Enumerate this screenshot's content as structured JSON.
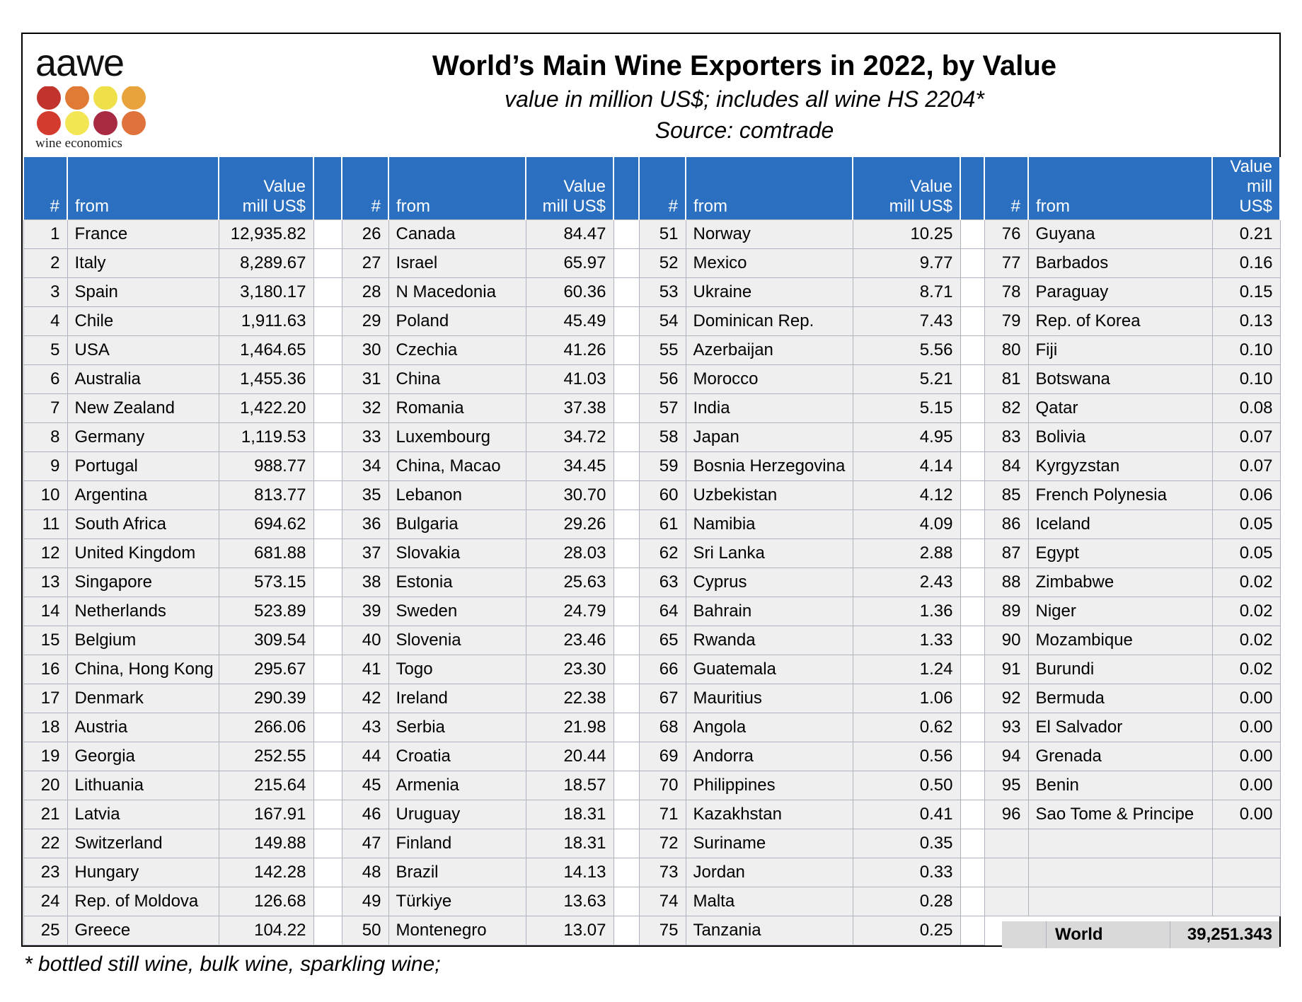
{
  "logo": {
    "wordmark": "aawe",
    "tagline": "wine economics",
    "dot_colors": [
      "#c0342d",
      "#e07a34",
      "#efe04a",
      "#e9a33d",
      "#d33b2f",
      "#f2e655",
      "#a82b43",
      "#e0733c"
    ]
  },
  "title": "World’s Main Wine Exporters in 2022, by Value",
  "subtitle": "value in million US$; includes all wine HS 2204*",
  "source": "Source: comtrade",
  "columns": {
    "rank": "#",
    "from": "from",
    "value_line1": "Value",
    "value_line2": "mill US$"
  },
  "rows": [
    [
      [
        "1",
        "France",
        "12,935.82"
      ],
      [
        "26",
        "Canada",
        "84.47"
      ],
      [
        "51",
        "Norway",
        "10.25"
      ],
      [
        "76",
        "Guyana",
        "0.21"
      ]
    ],
    [
      [
        "2",
        "Italy",
        "8,289.67"
      ],
      [
        "27",
        "Israel",
        "65.97"
      ],
      [
        "52",
        "Mexico",
        "9.77"
      ],
      [
        "77",
        "Barbados",
        "0.16"
      ]
    ],
    [
      [
        "3",
        "Spain",
        "3,180.17"
      ],
      [
        "28",
        "N Macedonia",
        "60.36"
      ],
      [
        "53",
        "Ukraine",
        "8.71"
      ],
      [
        "78",
        "Paraguay",
        "0.15"
      ]
    ],
    [
      [
        "4",
        "Chile",
        "1,911.63"
      ],
      [
        "29",
        "Poland",
        "45.49"
      ],
      [
        "54",
        "Dominican Rep.",
        "7.43"
      ],
      [
        "79",
        "Rep. of Korea",
        "0.13"
      ]
    ],
    [
      [
        "5",
        "USA",
        "1,464.65"
      ],
      [
        "30",
        "Czechia",
        "41.26"
      ],
      [
        "55",
        "Azerbaijan",
        "5.56"
      ],
      [
        "80",
        "Fiji",
        "0.10"
      ]
    ],
    [
      [
        "6",
        "Australia",
        "1,455.36"
      ],
      [
        "31",
        "China",
        "41.03"
      ],
      [
        "56",
        "Morocco",
        "5.21"
      ],
      [
        "81",
        "Botswana",
        "0.10"
      ]
    ],
    [
      [
        "7",
        "New Zealand",
        "1,422.20"
      ],
      [
        "32",
        "Romania",
        "37.38"
      ],
      [
        "57",
        "India",
        "5.15"
      ],
      [
        "82",
        "Qatar",
        "0.08"
      ]
    ],
    [
      [
        "8",
        "Germany",
        "1,119.53"
      ],
      [
        "33",
        "Luxembourg",
        "34.72"
      ],
      [
        "58",
        "Japan",
        "4.95"
      ],
      [
        "83",
        "Bolivia",
        "0.07"
      ]
    ],
    [
      [
        "9",
        "Portugal",
        "988.77"
      ],
      [
        "34",
        "China, Macao",
        "34.45"
      ],
      [
        "59",
        "Bosnia Herzegovina",
        "4.14"
      ],
      [
        "84",
        "Kyrgyzstan",
        "0.07"
      ]
    ],
    [
      [
        "10",
        "Argentina",
        "813.77"
      ],
      [
        "35",
        "Lebanon",
        "30.70"
      ],
      [
        "60",
        "Uzbekistan",
        "4.12"
      ],
      [
        "85",
        "French Polynesia",
        "0.06"
      ]
    ],
    [
      [
        "11",
        "South Africa",
        "694.62"
      ],
      [
        "36",
        "Bulgaria",
        "29.26"
      ],
      [
        "61",
        "Namibia",
        "4.09"
      ],
      [
        "86",
        "Iceland",
        "0.05"
      ]
    ],
    [
      [
        "12",
        "United Kingdom",
        "681.88"
      ],
      [
        "37",
        "Slovakia",
        "28.03"
      ],
      [
        "62",
        "Sri Lanka",
        "2.88"
      ],
      [
        "87",
        "Egypt",
        "0.05"
      ]
    ],
    [
      [
        "13",
        "Singapore",
        "573.15"
      ],
      [
        "38",
        "Estonia",
        "25.63"
      ],
      [
        "63",
        "Cyprus",
        "2.43"
      ],
      [
        "88",
        "Zimbabwe",
        "0.02"
      ]
    ],
    [
      [
        "14",
        "Netherlands",
        "523.89"
      ],
      [
        "39",
        "Sweden",
        "24.79"
      ],
      [
        "64",
        "Bahrain",
        "1.36"
      ],
      [
        "89",
        "Niger",
        "0.02"
      ]
    ],
    [
      [
        "15",
        "Belgium",
        "309.54"
      ],
      [
        "40",
        "Slovenia",
        "23.46"
      ],
      [
        "65",
        "Rwanda",
        "1.33"
      ],
      [
        "90",
        "Mozambique",
        "0.02"
      ]
    ],
    [
      [
        "16",
        "China, Hong Kong",
        "295.67"
      ],
      [
        "41",
        "Togo",
        "23.30"
      ],
      [
        "66",
        "Guatemala",
        "1.24"
      ],
      [
        "91",
        "Burundi",
        "0.02"
      ]
    ],
    [
      [
        "17",
        "Denmark",
        "290.39"
      ],
      [
        "42",
        "Ireland",
        "22.38"
      ],
      [
        "67",
        "Mauritius",
        "1.06"
      ],
      [
        "92",
        "Bermuda",
        "0.00"
      ]
    ],
    [
      [
        "18",
        "Austria",
        "266.06"
      ],
      [
        "43",
        "Serbia",
        "21.98"
      ],
      [
        "68",
        "Angola",
        "0.62"
      ],
      [
        "93",
        "El Salvador",
        "0.00"
      ]
    ],
    [
      [
        "19",
        "Georgia",
        "252.55"
      ],
      [
        "44",
        "Croatia",
        "20.44"
      ],
      [
        "69",
        "Andorra",
        "0.56"
      ],
      [
        "94",
        "Grenada",
        "0.00"
      ]
    ],
    [
      [
        "20",
        "Lithuania",
        "215.64"
      ],
      [
        "45",
        "Armenia",
        "18.57"
      ],
      [
        "70",
        "Philippines",
        "0.50"
      ],
      [
        "95",
        "Benin",
        "0.00"
      ]
    ],
    [
      [
        "21",
        "Latvia",
        "167.91"
      ],
      [
        "46",
        "Uruguay",
        "18.31"
      ],
      [
        "71",
        "Kazakhstan",
        "0.41"
      ],
      [
        "96",
        "Sao Tome & Principe",
        "0.00"
      ]
    ],
    [
      [
        "22",
        "Switzerland",
        "149.88"
      ],
      [
        "47",
        "Finland",
        "18.31"
      ],
      [
        "72",
        "Suriname",
        "0.35"
      ],
      [
        "",
        "",
        ""
      ]
    ],
    [
      [
        "23",
        "Hungary",
        "142.28"
      ],
      [
        "48",
        "Brazil",
        "14.13"
      ],
      [
        "73",
        "Jordan",
        "0.33"
      ],
      [
        "",
        "",
        ""
      ]
    ],
    [
      [
        "24",
        "Rep. of Moldova",
        "126.68"
      ],
      [
        "49",
        "Türkiye",
        "13.63"
      ],
      [
        "74",
        "Malta",
        "0.28"
      ],
      [
        "",
        "",
        ""
      ]
    ],
    [
      [
        "25",
        "Greece",
        "104.22"
      ],
      [
        "50",
        "Montenegro",
        "13.07"
      ],
      [
        "75",
        "Tanzania",
        "0.25"
      ],
      null
    ]
  ],
  "world": {
    "label": "World",
    "value": "39,251.343"
  },
  "footnote": "* bottled still wine, bulk wine, sparkling wine;",
  "colors": {
    "header_bg": "#2a6fc0",
    "cell_bg": "#efefef",
    "total_bg": "#d9d9d9"
  }
}
